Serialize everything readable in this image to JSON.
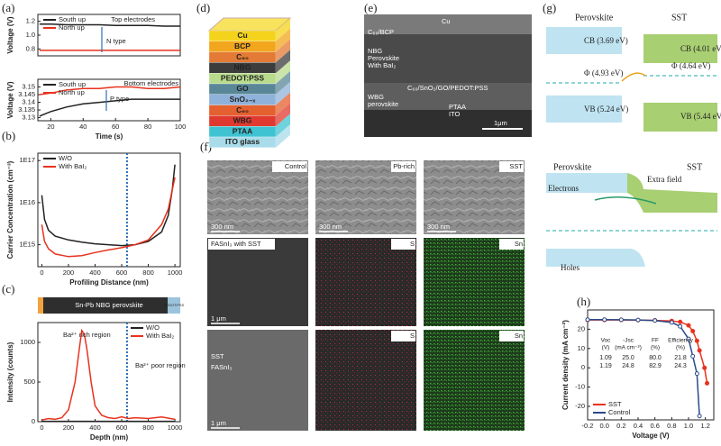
{
  "chart_data": [
    {
      "type": "line",
      "ylabel": "Voltage (V)",
      "xlim": [
        12,
        100
      ],
      "ylim": [
        0.7,
        1.3
      ],
      "yticks": [
        0.8,
        {
          "value": 1,
          "label": "1.0"
        },
        1.2
      ],
      "x": [
        13,
        20,
        30,
        40,
        50,
        60,
        70,
        80,
        90,
        100
      ],
      "series": [
        {
          "name": "South up",
          "color": "#222222",
          "values": [
            1.16,
            1.16,
            1.15,
            1.15,
            1.15,
            1.14,
            1.14,
            1.14,
            1.13,
            1.13
          ]
        },
        {
          "name": "North up",
          "color": "#e8321e",
          "values": [
            0.78,
            0.78,
            0.78,
            0.78,
            0.78,
            0.78,
            0.78,
            0.78,
            0.78,
            0.78
          ]
        }
      ],
      "legend": "upper left",
      "annotations": [
        "Top electrodes",
        "N type"
      ]
    },
    {
      "type": "line",
      "ylabel": "Voltage (V)",
      "xlabel": "Time (s)",
      "xlim": [
        12,
        100
      ],
      "ylim": [
        3.128,
        3.155
      ],
      "xticks": [
        20,
        40,
        60,
        80,
        100
      ],
      "yticks": [
        3.13,
        3.135,
        3.14,
        3.145,
        3.15
      ],
      "x": [
        13,
        20,
        30,
        40,
        50,
        60,
        70,
        80,
        90,
        100
      ],
      "series": [
        {
          "name": "South up",
          "color": "#222222",
          "values": [
            3.131,
            3.134,
            3.137,
            3.139,
            3.14,
            3.141,
            3.142,
            3.142,
            3.142,
            3.142
          ]
        },
        {
          "name": "North up",
          "color": "#e8321e",
          "values": [
            3.145,
            3.146,
            3.148,
            3.149,
            3.149,
            3.15,
            3.15,
            3.149,
            3.149,
            3.15
          ]
        }
      ],
      "legend": "upper left",
      "annotations": [
        "Bottom electrodes",
        "P type"
      ]
    },
    {
      "type": "line",
      "ylabel": "Carrier Concentration (cm⁻³)",
      "xlabel": "Profiling Distance (nm)",
      "log": true,
      "xlim": [
        -30,
        1040
      ],
      "ylim": [
        300000000000000.0,
        1.5e+17
      ],
      "xticks": [
        0,
        200,
        400,
        600,
        800,
        1000
      ],
      "yticks": [
        {
          "value": 1000000000000000.0,
          "label": "1E15"
        },
        {
          "value": 1e+16,
          "label": "1E16"
        },
        {
          "value": 1e+17,
          "label": "1E17"
        }
      ],
      "x": [
        0,
        20,
        50,
        100,
        200,
        300,
        400,
        500,
        600,
        700,
        800,
        900,
        950,
        980,
        1000
      ],
      "series": [
        {
          "name": "W/O",
          "color": "#222222",
          "values": [
            1.5e+16,
            4000000000000000.0,
            2200000000000000.0,
            1600000000000000.0,
            1300000000000000.0,
            1150000000000000.0,
            1050000000000000.0,
            1000000000000000.0,
            950000000000000.0,
            1000000000000000.0,
            1200000000000000.0,
            2000000000000000.0,
            5000000000000000.0,
            2e+16,
            8e+16
          ]
        },
        {
          "name": "With BaI₂",
          "color": "#e8321e",
          "values": [
            3000000000000000.0,
            1200000000000000.0,
            800000000000000.0,
            600000000000000.0,
            520000000000000.0,
            550000000000000.0,
            650000000000000.0,
            750000000000000.0,
            850000000000000.0,
            1000000000000000.0,
            1300000000000000.0,
            3000000000000000.0,
            7000000000000000.0,
            2e+16,
            4e+16
          ]
        }
      ],
      "legend": "upper left",
      "vline": 640
    },
    {
      "type": "line",
      "ylabel": "Intensity (counts)",
      "xlabel": "Depth (nm)",
      "xlim": [
        -30,
        1040
      ],
      "ylim": [
        0,
        1250
      ],
      "xticks": [
        0,
        200,
        400,
        600,
        800,
        1000
      ],
      "yticks": [
        0,
        500,
        1000
      ],
      "x": [
        0,
        50,
        100,
        150,
        200,
        250,
        280,
        300,
        320,
        340,
        370,
        400,
        450,
        500,
        550,
        600,
        650,
        700,
        800,
        900,
        1000
      ],
      "series": [
        {
          "name": "W/O",
          "color": "#222222",
          "values": [
            5,
            5,
            5,
            5,
            5,
            5,
            5,
            5,
            5,
            5,
            5,
            5,
            5,
            5,
            5,
            5,
            5,
            5,
            5,
            5,
            5
          ]
        },
        {
          "name": "With BaI₂",
          "color": "#e8321e",
          "values": [
            20,
            40,
            30,
            50,
            150,
            500,
            900,
            1150,
            1100,
            900,
            500,
            200,
            80,
            50,
            40,
            60,
            40,
            50,
            40,
            60,
            30
          ]
        }
      ],
      "legend": "upper right",
      "vline": 640,
      "annotations": [
        "Ba²⁺ rich region",
        "Ba²⁺ poor region"
      ],
      "band_labels": [
        "Sn-Pb NBG perovskite",
        "PEDOT:PSS"
      ]
    },
    {
      "type": "line",
      "ylabel": "Current density (mA cm⁻²)",
      "xlabel": "Voltage (V)",
      "xlim": [
        -0.2,
        1.3
      ],
      "ylim": [
        -27,
        30
      ],
      "xticks": [
        -0.2,
        {
          "value": 0,
          "label": "0.0"
        },
        0.2,
        0.4,
        0.6,
        0.8,
        {
          "value": 1,
          "label": "1.0"
        },
        1.2
      ],
      "yticks": [
        -20,
        -10,
        0,
        10,
        20
      ],
      "x": [
        -0.2,
        0,
        0.2,
        0.4,
        0.6,
        0.8,
        0.9,
        1.0,
        1.05,
        1.1,
        1.13,
        1.19,
        1.22
      ],
      "series": [
        {
          "name": "SST",
          "color": "#e8321e",
          "values": [
            24.8,
            24.8,
            24.8,
            24.7,
            24.6,
            24.3,
            23.8,
            22,
            19,
            14,
            9,
            0,
            -8
          ]
        },
        {
          "name": "Control",
          "color": "#2a4a8a",
          "values": [
            25,
            25,
            24.9,
            24.8,
            24.5,
            23.5,
            21.5,
            15,
            6,
            -3,
            -25,
            null,
            null
          ]
        }
      ],
      "legend": "lower left",
      "markers": true,
      "table": {
        "columns": [
          [
            "Voc",
            "(V)"
          ],
          [
            "-Jsc",
            "(mA cm⁻²)"
          ],
          [
            "FF",
            "(%)"
          ],
          [
            "Efficiency",
            "(%)"
          ]
        ],
        "rows": [
          [
            "1.09",
            "25.0",
            "80.0",
            "21.8"
          ],
          [
            "1.19",
            "24.8",
            "82.9",
            "24.3"
          ]
        ]
      }
    }
  ],
  "figure": {
    "panel_labels": [
      "(a)",
      "(b)",
      "(c)",
      "(d)",
      "(e)",
      "(f)",
      "(g)",
      "(h)"
    ],
    "d_layers": [
      {
        "label": "Cu",
        "color": "#f4d31c"
      },
      {
        "label": "BCP",
        "color": "#f2a61e"
      },
      {
        "label": "C₆₀",
        "color": "#e37a35"
      },
      {
        "label": "NBG",
        "color": "#3c3c3c"
      },
      {
        "label": "PEDOT:PSS",
        "color": "#b8db8c"
      },
      {
        "label": "GO",
        "color": "#5a8798"
      },
      {
        "label": "SnO₂₋ₓ",
        "color": "#8fb2da"
      },
      {
        "label": "C₆₀",
        "color": "#e4602e"
      },
      {
        "label": "WBG",
        "color": "#e03a30"
      },
      {
        "label": "PTAA",
        "color": "#3fc3d2"
      },
      {
        "label": "ITO glass",
        "color": "#a8dcea"
      }
    ],
    "e_labels": [
      "Cu",
      "C₆₀/BCP",
      [
        "NBG",
        "Perovskite",
        "With BaI₂"
      ],
      "C₆₀/SnO₂/GO/PEDOT:PSS",
      [
        "WBG",
        "perovskite"
      ],
      "PTAA",
      "ITO",
      "1μm"
    ],
    "f_images": [
      [
        "Control",
        "300 nm"
      ],
      [
        "Pb-rich",
        "300 nm"
      ],
      [
        "SST",
        "300 nm"
      ],
      [
        "FASnI₃ with SST",
        "1 μm"
      ],
      [
        "S"
      ],
      [
        "Sn"
      ],
      [
        "SST",
        "FASnI₃",
        "1 μm"
      ],
      [
        "S"
      ],
      [
        "Sn"
      ]
    ],
    "g_labels": [
      "Perovskite",
      "SST",
      "CB (3.69 eV)",
      "CB (4.01 eV)",
      "Φ (4.93 eV)",
      "Φ (4.64 eV)",
      "VB (5.24 eV)",
      "VB (5.44 eV)",
      "Perovskite",
      "SST",
      "Extra field",
      "Electrons",
      "Holes"
    ]
  }
}
